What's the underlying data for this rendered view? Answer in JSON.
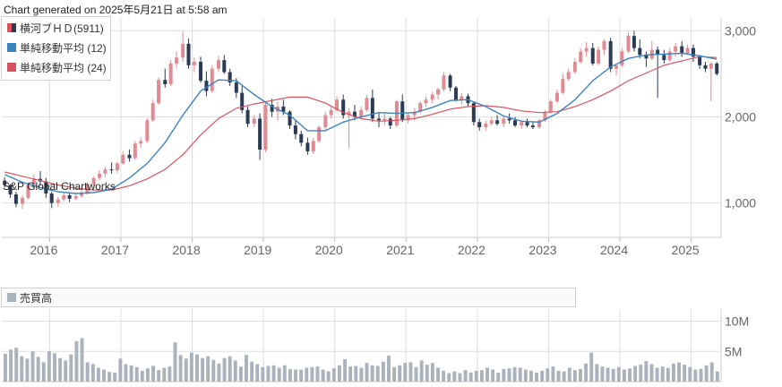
{
  "header": "Chart generated on 2025年5月21日 at 5:58 am",
  "watermark": "S&P Global Chartworks",
  "legend": [
    {
      "label": "横河ブＨＤ(5911)",
      "color": "#d9535f"
    },
    {
      "label": "単純移動平均 (12)",
      "color": "#3b84c0"
    },
    {
      "label": "単純移動平均 (24)",
      "color": "#d9535f"
    }
  ],
  "volume_legend": {
    "label": "売買高",
    "color": "#aab3bd"
  },
  "colors": {
    "up": "#e08a93",
    "down": "#2b3a55",
    "sma12": "#3b84c0",
    "sma24": "#d9535f",
    "volume": "#aab3bd",
    "grid": "#dddddd"
  },
  "chart_data": {
    "type": "candlestick",
    "price": {
      "y_ticks": [
        "1,000",
        "2,000",
        "3,000"
      ],
      "y_tick_values": [
        1000,
        2000,
        3000
      ],
      "ylim": [
        600,
        3150
      ]
    },
    "x_ticks": [
      "2016",
      "2017",
      "2018",
      "2019",
      "2020",
      "2021",
      "2022",
      "2023",
      "2024",
      "2025"
    ],
    "x_range": [
      2015.33,
      2025.42
    ],
    "candles": [
      [
        2015.37,
        1260,
        1300,
        1180,
        1210
      ],
      [
        2015.45,
        1210,
        1220,
        1060,
        1100
      ],
      [
        2015.53,
        1100,
        1130,
        950,
        990
      ],
      [
        2015.62,
        990,
        1090,
        930,
        1060
      ],
      [
        2015.7,
        1060,
        1240,
        1040,
        1210
      ],
      [
        2015.78,
        1210,
        1330,
        1150,
        1280
      ],
      [
        2015.87,
        1280,
        1370,
        1200,
        1250
      ],
      [
        2015.95,
        1250,
        1290,
        1060,
        1110
      ],
      [
        2016.03,
        1110,
        1130,
        940,
        1000
      ],
      [
        2016.12,
        1000,
        1070,
        950,
        1040
      ],
      [
        2016.2,
        1040,
        1120,
        1020,
        1090
      ],
      [
        2016.28,
        1090,
        1110,
        1010,
        1050
      ],
      [
        2016.37,
        1050,
        1100,
        1030,
        1080
      ],
      [
        2016.45,
        1080,
        1150,
        1060,
        1120
      ],
      [
        2016.53,
        1120,
        1240,
        1100,
        1220
      ],
      [
        2016.62,
        1220,
        1310,
        1200,
        1290
      ],
      [
        2016.7,
        1290,
        1380,
        1260,
        1340
      ],
      [
        2016.78,
        1340,
        1420,
        1300,
        1390
      ],
      [
        2016.87,
        1390,
        1470,
        1340,
        1380
      ],
      [
        2016.95,
        1380,
        1480,
        1350,
        1460
      ],
      [
        2017.03,
        1460,
        1600,
        1440,
        1560
      ],
      [
        2017.12,
        1560,
        1620,
        1480,
        1520
      ],
      [
        2017.2,
        1520,
        1720,
        1500,
        1690
      ],
      [
        2017.28,
        1690,
        1760,
        1640,
        1720
      ],
      [
        2017.37,
        1720,
        1990,
        1700,
        1960
      ],
      [
        2017.45,
        1960,
        2200,
        1940,
        2160
      ],
      [
        2017.53,
        2160,
        2460,
        2140,
        2430
      ],
      [
        2017.62,
        2430,
        2560,
        2340,
        2380
      ],
      [
        2017.7,
        2380,
        2660,
        2360,
        2620
      ],
      [
        2017.78,
        2620,
        2760,
        2560,
        2690
      ],
      [
        2017.87,
        2690,
        2990,
        2640,
        2850
      ],
      [
        2017.95,
        2850,
        2910,
        2560,
        2600
      ],
      [
        2018.03,
        2600,
        2690,
        2520,
        2640
      ],
      [
        2018.12,
        2640,
        2700,
        2400,
        2420
      ],
      [
        2018.2,
        2420,
        2530,
        2240,
        2300
      ],
      [
        2018.28,
        2300,
        2600,
        2280,
        2560
      ],
      [
        2018.37,
        2560,
        2710,
        2520,
        2660
      ],
      [
        2018.45,
        2660,
        2720,
        2500,
        2520
      ],
      [
        2018.53,
        2520,
        2560,
        2360,
        2400
      ],
      [
        2018.62,
        2400,
        2450,
        2220,
        2280
      ],
      [
        2018.7,
        2280,
        2360,
        2040,
        2080
      ],
      [
        2018.78,
        2080,
        2120,
        1880,
        1920
      ],
      [
        2018.87,
        1920,
        2020,
        1880,
        1980
      ],
      [
        2018.95,
        1980,
        2040,
        1500,
        1620
      ],
      [
        2019.03,
        1620,
        2180,
        1590,
        2140
      ],
      [
        2019.12,
        2140,
        2210,
        2000,
        2060
      ],
      [
        2019.2,
        2060,
        2180,
        1960,
        2120
      ],
      [
        2019.28,
        2120,
        2200,
        2020,
        2060
      ],
      [
        2019.37,
        2060,
        2080,
        1860,
        1900
      ],
      [
        2019.45,
        1900,
        1960,
        1740,
        1800
      ],
      [
        2019.53,
        1800,
        1840,
        1660,
        1700
      ],
      [
        2019.62,
        1700,
        1760,
        1560,
        1600
      ],
      [
        2019.7,
        1600,
        1760,
        1570,
        1720
      ],
      [
        2019.78,
        1720,
        1900,
        1700,
        1880
      ],
      [
        2019.87,
        1880,
        2060,
        1840,
        2020
      ],
      [
        2019.95,
        2020,
        2120,
        1980,
        2080
      ],
      [
        2020.03,
        2080,
        2240,
        2060,
        2200
      ],
      [
        2020.12,
        2200,
        2260,
        1980,
        2020
      ],
      [
        2020.2,
        2020,
        2100,
        1640,
        2060
      ],
      [
        2020.28,
        2060,
        2140,
        1960,
        2000
      ],
      [
        2020.37,
        2000,
        2120,
        1980,
        2080
      ],
      [
        2020.45,
        2080,
        2260,
        2060,
        2220
      ],
      [
        2020.53,
        2220,
        2320,
        1940,
        1980
      ],
      [
        2020.62,
        1980,
        2040,
        1880,
        1960
      ],
      [
        2020.7,
        1960,
        2040,
        1900,
        1980
      ],
      [
        2020.78,
        1980,
        2000,
        1860,
        1900
      ],
      [
        2020.87,
        1900,
        2200,
        1880,
        2180
      ],
      [
        2020.95,
        2180,
        2260,
        1940,
        1960
      ],
      [
        2021.03,
        1960,
        2040,
        1920,
        2020
      ],
      [
        2021.12,
        2020,
        2100,
        1960,
        2060
      ],
      [
        2021.2,
        2060,
        2180,
        2040,
        2160
      ],
      [
        2021.28,
        2160,
        2240,
        2120,
        2200
      ],
      [
        2021.37,
        2200,
        2290,
        2160,
        2260
      ],
      [
        2021.45,
        2260,
        2340,
        2200,
        2320
      ],
      [
        2021.53,
        2320,
        2520,
        2300,
        2480
      ],
      [
        2021.62,
        2480,
        2500,
        2300,
        2340
      ],
      [
        2021.7,
        2340,
        2360,
        2180,
        2200
      ],
      [
        2021.78,
        2200,
        2280,
        2140,
        2240
      ],
      [
        2021.87,
        2240,
        2270,
        2120,
        2160
      ],
      [
        2021.95,
        2160,
        2180,
        1900,
        1940
      ],
      [
        2022.03,
        1940,
        1980,
        1840,
        1880
      ],
      [
        2022.12,
        1880,
        1960,
        1840,
        1920
      ],
      [
        2022.2,
        1920,
        2000,
        1900,
        1960
      ],
      [
        2022.28,
        1960,
        2020,
        1900,
        1920
      ],
      [
        2022.37,
        1920,
        2000,
        1880,
        1980
      ],
      [
        2022.45,
        1980,
        2040,
        1920,
        1960
      ],
      [
        2022.53,
        1960,
        2000,
        1880,
        1900
      ],
      [
        2022.62,
        1900,
        1960,
        1860,
        1940
      ],
      [
        2022.7,
        1940,
        1980,
        1880,
        1900
      ],
      [
        2022.78,
        1900,
        1940,
        1860,
        1880
      ],
      [
        2022.87,
        1880,
        1980,
        1860,
        1960
      ],
      [
        2022.95,
        1960,
        2080,
        1940,
        2060
      ],
      [
        2023.03,
        2060,
        2200,
        2040,
        2180
      ],
      [
        2023.12,
        2180,
        2320,
        2160,
        2280
      ],
      [
        2023.2,
        2280,
        2500,
        2260,
        2440
      ],
      [
        2023.28,
        2440,
        2560,
        2420,
        2520
      ],
      [
        2023.37,
        2520,
        2680,
        2500,
        2640
      ],
      [
        2023.45,
        2640,
        2800,
        2620,
        2760
      ],
      [
        2023.53,
        2760,
        2870,
        2700,
        2800
      ],
      [
        2023.62,
        2800,
        2860,
        2600,
        2620
      ],
      [
        2023.7,
        2620,
        2820,
        2600,
        2780
      ],
      [
        2023.78,
        2780,
        2900,
        2720,
        2880
      ],
      [
        2023.87,
        2880,
        2920,
        2520,
        2560
      ],
      [
        2023.95,
        2560,
        2620,
        2480,
        2600
      ],
      [
        2024.03,
        2600,
        2800,
        2580,
        2760
      ],
      [
        2024.12,
        2760,
        2980,
        2740,
        2940
      ],
      [
        2024.2,
        2940,
        3000,
        2760,
        2800
      ],
      [
        2024.28,
        2800,
        2900,
        2680,
        2720
      ],
      [
        2024.37,
        2720,
        2760,
        2580,
        2680
      ],
      [
        2024.45,
        2680,
        2880,
        2660,
        2780
      ],
      [
        2024.53,
        2780,
        2820,
        2220,
        2720
      ],
      [
        2024.62,
        2720,
        2780,
        2620,
        2660
      ],
      [
        2024.7,
        2660,
        2800,
        2640,
        2760
      ],
      [
        2024.78,
        2760,
        2860,
        2700,
        2820
      ],
      [
        2024.87,
        2820,
        2880,
        2700,
        2740
      ],
      [
        2024.95,
        2740,
        2840,
        2720,
        2800
      ],
      [
        2025.03,
        2800,
        2840,
        2640,
        2700
      ],
      [
        2025.12,
        2700,
        2720,
        2560,
        2600
      ],
      [
        2025.2,
        2600,
        2640,
        2520,
        2560
      ],
      [
        2025.28,
        2560,
        2640,
        2180,
        2620
      ],
      [
        2025.36,
        2620,
        2640,
        2480,
        2500
      ]
    ],
    "sma12": [
      [
        2015.37,
        1330
      ],
      [
        2015.62,
        1240
      ],
      [
        2015.87,
        1180
      ],
      [
        2016.12,
        1130
      ],
      [
        2016.37,
        1110
      ],
      [
        2016.62,
        1120
      ],
      [
        2016.87,
        1160
      ],
      [
        2017.12,
        1290
      ],
      [
        2017.37,
        1460
      ],
      [
        2017.62,
        1700
      ],
      [
        2017.87,
        2020
      ],
      [
        2018.12,
        2300
      ],
      [
        2018.37,
        2430
      ],
      [
        2018.62,
        2420
      ],
      [
        2018.87,
        2260
      ],
      [
        2019.12,
        2120
      ],
      [
        2019.37,
        2020
      ],
      [
        2019.62,
        1840
      ],
      [
        2019.87,
        1840
      ],
      [
        2020.12,
        1940
      ],
      [
        2020.37,
        2000
      ],
      [
        2020.62,
        2050
      ],
      [
        2020.87,
        2040
      ],
      [
        2021.12,
        2050
      ],
      [
        2021.37,
        2110
      ],
      [
        2021.62,
        2190
      ],
      [
        2021.87,
        2200
      ],
      [
        2022.12,
        2120
      ],
      [
        2022.37,
        2010
      ],
      [
        2022.62,
        1950
      ],
      [
        2022.87,
        1940
      ],
      [
        2023.12,
        2040
      ],
      [
        2023.37,
        2200
      ],
      [
        2023.62,
        2420
      ],
      [
        2023.87,
        2580
      ],
      [
        2024.12,
        2680
      ],
      [
        2024.37,
        2720
      ],
      [
        2024.62,
        2730
      ],
      [
        2024.87,
        2740
      ],
      [
        2025.12,
        2710
      ],
      [
        2025.36,
        2670
      ]
    ],
    "sma24": [
      [
        2015.37,
        1360
      ],
      [
        2015.62,
        1310
      ],
      [
        2015.87,
        1260
      ],
      [
        2016.12,
        1210
      ],
      [
        2016.37,
        1170
      ],
      [
        2016.62,
        1150
      ],
      [
        2016.87,
        1150
      ],
      [
        2017.12,
        1200
      ],
      [
        2017.37,
        1280
      ],
      [
        2017.62,
        1390
      ],
      [
        2017.87,
        1560
      ],
      [
        2018.12,
        1790
      ],
      [
        2018.37,
        1980
      ],
      [
        2018.62,
        2100
      ],
      [
        2018.87,
        2150
      ],
      [
        2019.12,
        2190
      ],
      [
        2019.37,
        2230
      ],
      [
        2019.62,
        2230
      ],
      [
        2019.87,
        2160
      ],
      [
        2020.12,
        2050
      ],
      [
        2020.37,
        1980
      ],
      [
        2020.62,
        1950
      ],
      [
        2020.87,
        1960
      ],
      [
        2021.12,
        1980
      ],
      [
        2021.37,
        2030
      ],
      [
        2021.62,
        2090
      ],
      [
        2021.87,
        2120
      ],
      [
        2022.12,
        2130
      ],
      [
        2022.37,
        2110
      ],
      [
        2022.62,
        2070
      ],
      [
        2022.87,
        2050
      ],
      [
        2023.12,
        2060
      ],
      [
        2023.37,
        2120
      ],
      [
        2023.62,
        2200
      ],
      [
        2023.87,
        2300
      ],
      [
        2024.12,
        2420
      ],
      [
        2024.37,
        2510
      ],
      [
        2024.62,
        2600
      ],
      [
        2024.87,
        2650
      ],
      [
        2025.12,
        2700
      ],
      [
        2025.36,
        2690
      ]
    ],
    "volume": {
      "y_ticks": [
        "5M",
        "10M"
      ],
      "y_tick_values": [
        5,
        10
      ],
      "ylim": [
        0,
        12
      ],
      "values": [
        4.6,
        5.3,
        5.6,
        4.2,
        3.8,
        5.0,
        4.1,
        3.2,
        5.0,
        4.7,
        3.9,
        3.5,
        4.5,
        6.7,
        7.2,
        3.2,
        2.9,
        2.3,
        2.0,
        1.6,
        1.5,
        3.8,
        2.9,
        2.7,
        2.4,
        1.8,
        2.2,
        2.6,
        1.9,
        2.3,
        2.5,
        6.5,
        4.4,
        3.8,
        4.8,
        4.5,
        3.9,
        4.2,
        3.6,
        3.0,
        3.9,
        4.2,
        3.5,
        2.5,
        4.4,
        3.3,
        2.9,
        2.4,
        2.6,
        2.7,
        2.3,
        2.7,
        2.1,
        2.0,
        2.0,
        2.3,
        2.4,
        2.5,
        2.0,
        1.7,
        2.2,
        2.7,
        3.7,
        2.5,
        2.6,
        2.3,
        3.1,
        2.7,
        2.6,
        3.3,
        4.3,
        2.4,
        2.7,
        3.1,
        3.2,
        2.4,
        3.5,
        2.8,
        3.1,
        2.3,
        1.8,
        1.4,
        1.7,
        1.4,
        1.9,
        1.5,
        1.8,
        1.9,
        2.3,
        2.0,
        1.5,
        2.1,
        2.2,
        2.4,
        2.3,
        2.0,
        1.8,
        1.5,
        1.8,
        2.2,
        2.5,
        1.8,
        1.7,
        2.3,
        1.9,
        2.1,
        3.0,
        4.8,
        2.9,
        2.5,
        2.3,
        2.1,
        2.4,
        2.0,
        2.2,
        2.6,
        2.8,
        3.4,
        2.9,
        2.3,
        2.5,
        2.3,
        3.0,
        3.2,
        2.8,
        2.4,
        2.0,
        2.1,
        2.7,
        3.2,
        1.7
      ]
    }
  }
}
